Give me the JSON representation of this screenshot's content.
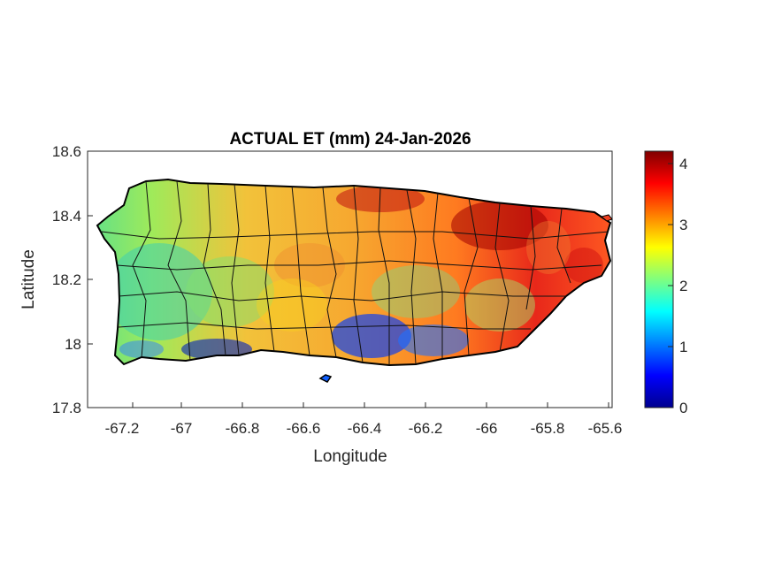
{
  "figure": {
    "title": "ACTUAL ET (mm) 24-Jan-2026",
    "xlabel": "Longitude",
    "ylabel": "Latitude"
  },
  "chart_data": {
    "type": "heatmap",
    "title": "ACTUAL ET (mm) 24-Jan-2026",
    "xlabel": "Longitude",
    "ylabel": "Latitude",
    "xlim": [
      -67.3,
      -65.58
    ],
    "ylim": [
      17.8,
      18.6
    ],
    "xticks": [
      -67.2,
      -67,
      -66.8,
      -66.6,
      -66.4,
      -66.2,
      -66,
      -65.8,
      -65.6
    ],
    "xtick_labels": [
      "-67.2",
      "-67",
      "-66.8",
      "-66.6",
      "-66.4",
      "-66.2",
      "-66",
      "-65.8",
      "-65.6"
    ],
    "yticks": [
      17.8,
      18,
      18.2,
      18.4,
      18.6
    ],
    "ytick_labels": [
      "17.8",
      "18",
      "18.2",
      "18.4",
      "18.6"
    ],
    "colorbar": {
      "min": 0,
      "max": 4.2,
      "ticks": [
        0,
        1,
        2,
        3,
        4
      ],
      "tick_labels": [
        "0",
        "1",
        "2",
        "3",
        "4"
      ],
      "colormap": "jet"
    },
    "grid": false,
    "regions": [
      {
        "name": "north-east",
        "approx_value": 3.8
      },
      {
        "name": "north-central",
        "approx_value": 3.3
      },
      {
        "name": "central-interior",
        "approx_value": 2.6
      },
      {
        "name": "west",
        "approx_value": 2.0
      },
      {
        "name": "south-west coast",
        "approx_value": 0.8
      },
      {
        "name": "south-central coast",
        "approx_value": 1.0
      },
      {
        "name": "east",
        "approx_value": 3.0
      }
    ]
  },
  "colors": {
    "axes": "#262626",
    "outline": "#000000"
  }
}
